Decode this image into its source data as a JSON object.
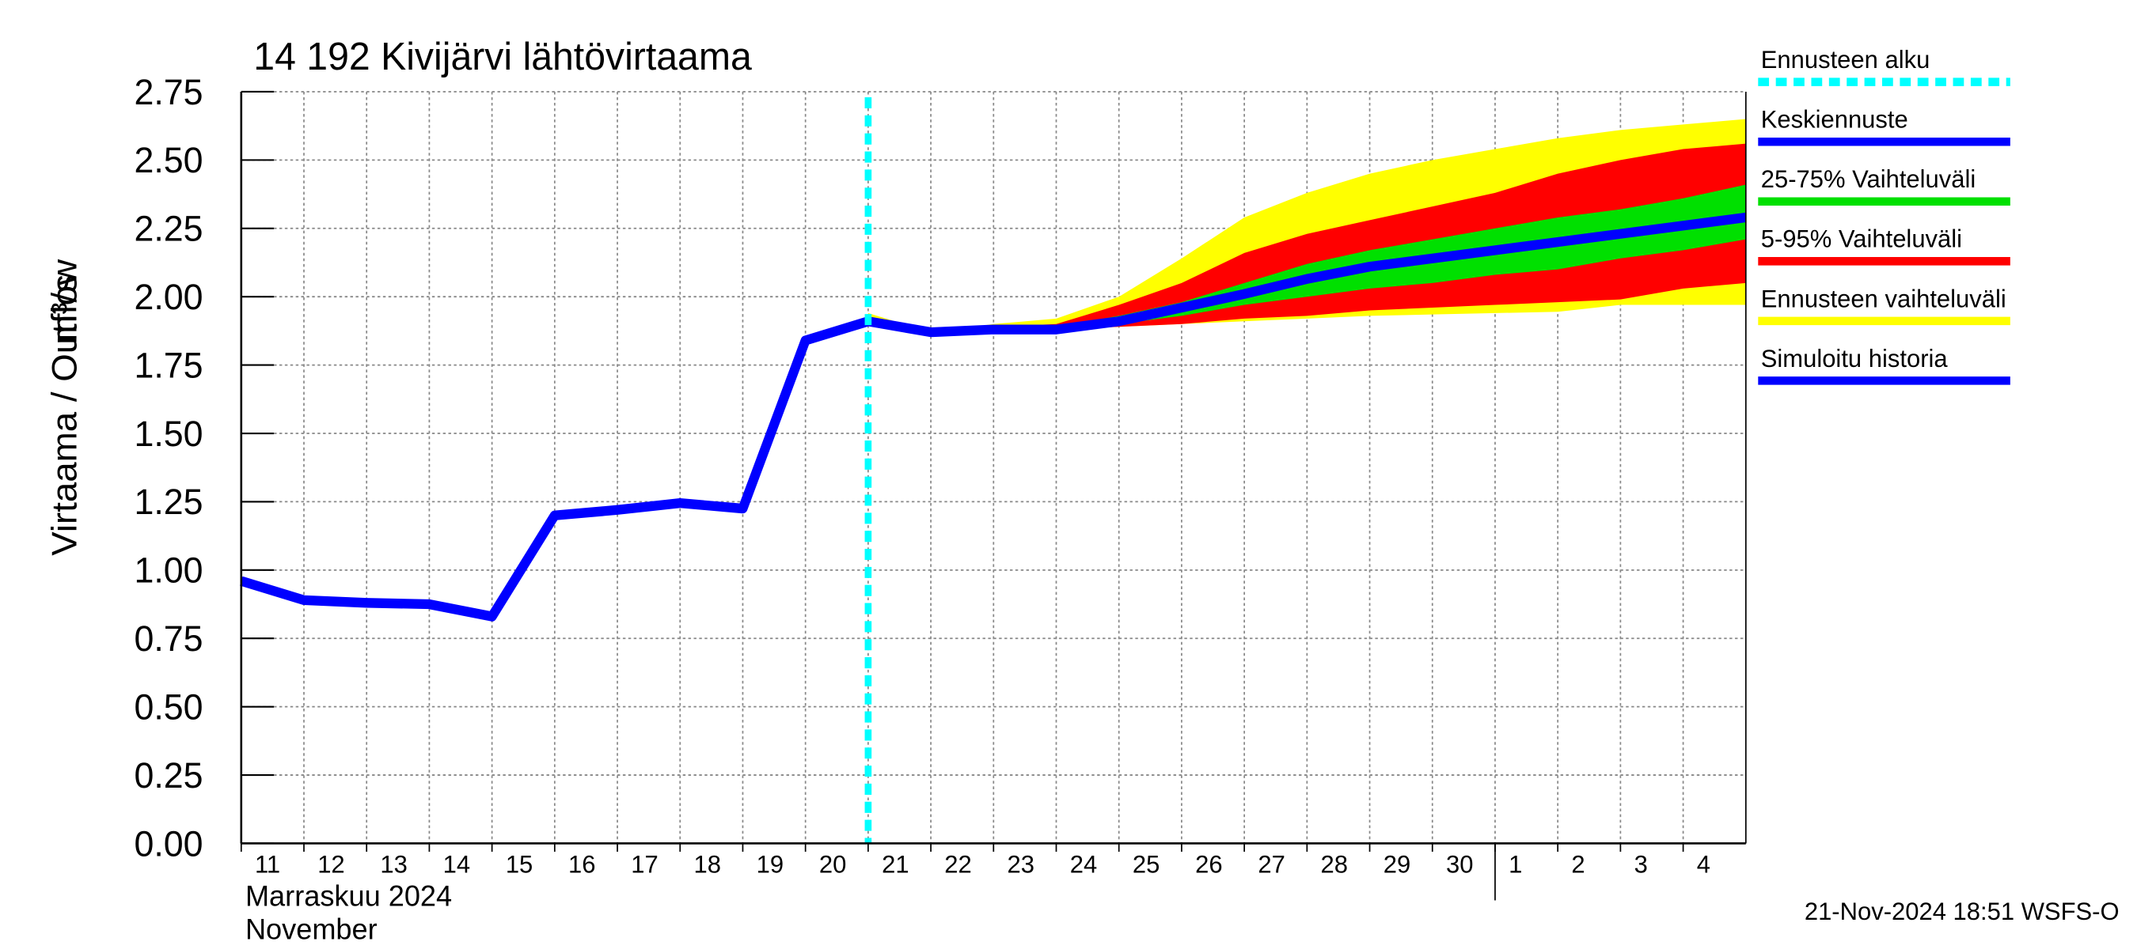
{
  "chart_data": {
    "type": "band-line",
    "title": "14 192 Kivijärvi lähtövirtaama",
    "y_label": "Virtaama / Outflow",
    "y_unit": "m³/s",
    "x_label_fi": "Marraskuu 2024",
    "x_label_en": "November",
    "footer": "21-Nov-2024 18:51 WSFS-O",
    "xlim": [
      0,
      24
    ],
    "xticks": [
      {
        "value": 0,
        "label": "11"
      },
      {
        "value": 1,
        "label": "12"
      },
      {
        "value": 2,
        "label": "13"
      },
      {
        "value": 3,
        "label": "14"
      },
      {
        "value": 4,
        "label": "15"
      },
      {
        "value": 5,
        "label": "16"
      },
      {
        "value": 6,
        "label": "17"
      },
      {
        "value": 7,
        "label": "18"
      },
      {
        "value": 8,
        "label": "19"
      },
      {
        "value": 9,
        "label": "20"
      },
      {
        "value": 10,
        "label": "21"
      },
      {
        "value": 11,
        "label": "22"
      },
      {
        "value": 12,
        "label": "23"
      },
      {
        "value": 13,
        "label": "24"
      },
      {
        "value": 14,
        "label": "25"
      },
      {
        "value": 15,
        "label": "26"
      },
      {
        "value": 16,
        "label": "27"
      },
      {
        "value": 17,
        "label": "28"
      },
      {
        "value": 18,
        "label": "29"
      },
      {
        "value": 19,
        "label": "30"
      },
      {
        "value": 20,
        "label": "1"
      },
      {
        "value": 21,
        "label": "2"
      },
      {
        "value": 22,
        "label": "3"
      },
      {
        "value": 23,
        "label": "4"
      }
    ],
    "ylim": [
      0,
      2.75
    ],
    "yticks": [
      {
        "value": 0,
        "label": "0.00"
      },
      0.25,
      {
        "value": 0.5,
        "label": "0.50"
      },
      0.75,
      {
        "value": 1,
        "label": "1.00"
      },
      1.25,
      {
        "value": 1.5,
        "label": "1.50"
      },
      1.75,
      {
        "value": 2,
        "label": "2.00"
      },
      2.25,
      {
        "value": 2.5,
        "label": "2.50"
      },
      2.75
    ],
    "grid": true,
    "series": [
      {
        "name": "Ennusteen alku",
        "color": "#00ffff",
        "style": "vline",
        "x": 10
      },
      {
        "name": "Keskiennuste",
        "color": "#0000ff",
        "style": "line",
        "x": [
          10,
          11,
          12,
          13,
          14,
          15,
          16,
          17,
          18,
          19,
          20,
          21,
          22,
          23,
          24
        ],
        "values": [
          1.91,
          1.87,
          1.88,
          1.88,
          1.91,
          1.96,
          2.01,
          2.065,
          2.11,
          2.14,
          2.17,
          2.2,
          2.23,
          2.26,
          2.29
        ]
      },
      {
        "name": "25-75% Vaihteluväli",
        "color": "#00e000",
        "style": "band",
        "x": [
          10,
          11,
          12,
          13,
          14,
          15,
          16,
          17,
          18,
          19,
          20,
          21,
          22,
          23,
          24
        ],
        "low": [
          1.91,
          1.87,
          1.88,
          1.88,
          1.9,
          1.93,
          1.97,
          2.0,
          2.03,
          2.05,
          2.08,
          2.1,
          2.14,
          2.17,
          2.21
        ],
        "high": [
          1.91,
          1.87,
          1.88,
          1.89,
          1.93,
          1.98,
          2.05,
          2.12,
          2.17,
          2.21,
          2.25,
          2.29,
          2.32,
          2.36,
          2.41
        ]
      },
      {
        "name": "5-95% Vaihteluväli",
        "color": "#ff0000",
        "style": "band",
        "x": [
          10,
          11,
          12,
          13,
          14,
          15,
          16,
          17,
          18,
          19,
          20,
          21,
          22,
          23,
          24
        ],
        "low": [
          1.91,
          1.87,
          1.88,
          1.88,
          1.89,
          1.9,
          1.92,
          1.93,
          1.95,
          1.96,
          1.97,
          1.98,
          1.99,
          2.03,
          2.05
        ],
        "high": [
          1.92,
          1.87,
          1.89,
          1.9,
          1.97,
          2.05,
          2.16,
          2.23,
          2.28,
          2.33,
          2.38,
          2.45,
          2.5,
          2.54,
          2.56
        ]
      },
      {
        "name": "Ennusteen vaihteluväli",
        "color": "#ffff00",
        "style": "band",
        "x": [
          10,
          11,
          12,
          13,
          14,
          15,
          16,
          17,
          18,
          19,
          20,
          21,
          22,
          23,
          24
        ],
        "low": [
          1.9,
          1.87,
          1.88,
          1.88,
          1.89,
          1.9,
          1.91,
          1.92,
          1.93,
          1.935,
          1.94,
          1.945,
          1.97,
          1.97,
          1.97
        ],
        "high": [
          1.94,
          1.87,
          1.9,
          1.92,
          2.0,
          2.14,
          2.29,
          2.38,
          2.45,
          2.5,
          2.54,
          2.58,
          2.61,
          2.63,
          2.65
        ]
      },
      {
        "name": "Simuloitu historia",
        "color": "#0000ff",
        "style": "line",
        "x": [
          0,
          1,
          2,
          3,
          4,
          5,
          6,
          7,
          8,
          9,
          10
        ],
        "values": [
          0.96,
          0.89,
          0.88,
          0.875,
          0.83,
          1.2,
          1.22,
          1.245,
          1.225,
          1.84,
          1.91
        ]
      }
    ]
  }
}
